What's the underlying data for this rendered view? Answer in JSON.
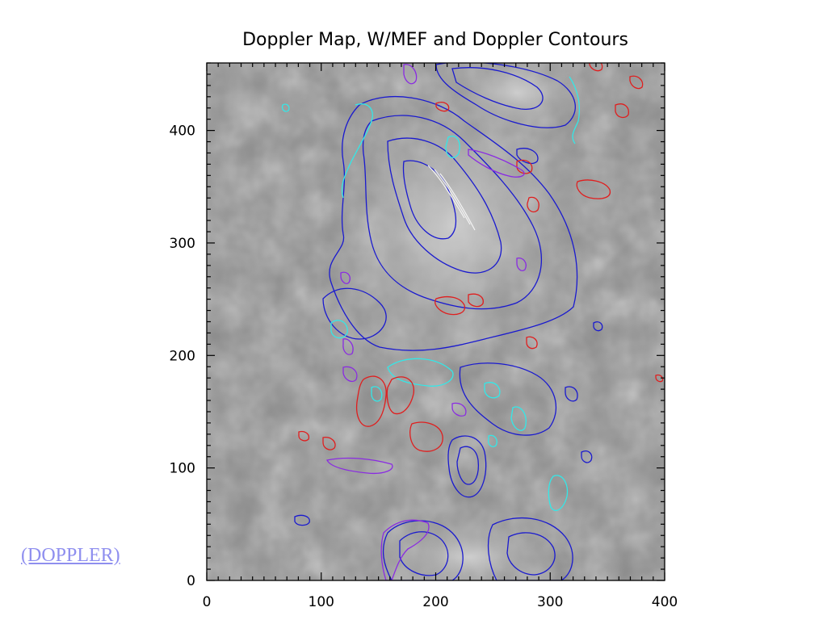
{
  "link": {
    "label": "(DOPPLER)"
  },
  "colors": {
    "blue": "#1a1acf",
    "cyan": "#33e8e8",
    "red": "#e01e1e",
    "purple": "#8a2be2",
    "link": "#8f8fef"
  },
  "chart_data": {
    "type": "heatmap",
    "title": "Doppler Map, W/MEF and Doppler Contours",
    "xlim": [
      0,
      400
    ],
    "ylim": [
      0,
      460
    ],
    "x_ticks": [
      0,
      100,
      200,
      300,
      400
    ],
    "y_ticks": [
      0,
      100,
      200,
      300,
      400
    ],
    "x_tick_labels": [
      "0",
      "100",
      "200",
      "300",
      "400"
    ],
    "y_tick_labels": [
      "0",
      "100",
      "200",
      "300",
      "400"
    ],
    "background": "grayscale doppler intensity image",
    "contour_colors": [
      "blue",
      "cyan",
      "red",
      "purple"
    ]
  }
}
